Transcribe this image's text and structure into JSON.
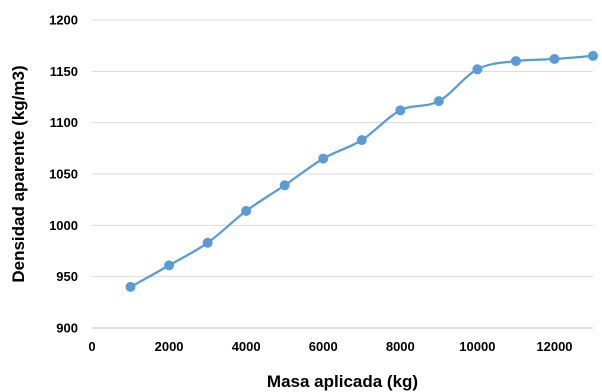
{
  "chart_data": {
    "type": "line",
    "title": "",
    "xlabel": "Masa aplicada (kg)",
    "ylabel": "Densidad aparente (kg/m3)",
    "xlim": [
      0,
      13000
    ],
    "ylim": [
      900,
      1200
    ],
    "xticks": [
      0,
      2000,
      4000,
      6000,
      8000,
      10000,
      12000
    ],
    "yticks": [
      900,
      950,
      1000,
      1050,
      1100,
      1150,
      1200
    ],
    "grid": "horizontal",
    "legend": "none",
    "smooth": true,
    "series": [
      {
        "color": "#5b9bd5",
        "x": [
          1000,
          2000,
          3000,
          4000,
          5000,
          6000,
          7000,
          8000,
          9000,
          10000,
          11000,
          12000,
          13000
        ],
        "y": [
          940,
          961,
          983,
          1014,
          1039,
          1065,
          1083,
          1112,
          1121,
          1152,
          1160,
          1162,
          1165
        ]
      }
    ]
  },
  "colors": {
    "gridline": "#d9d9d9",
    "axis": "#bfbfbf"
  }
}
